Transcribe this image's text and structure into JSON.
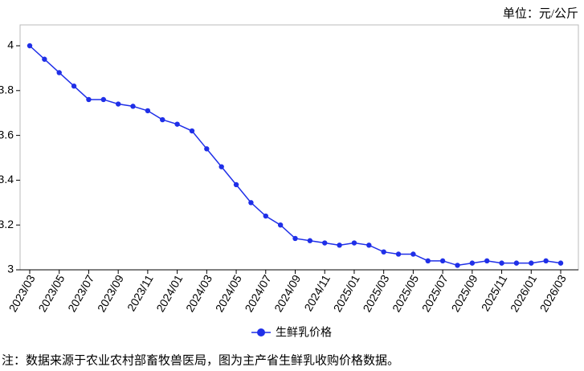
{
  "chart_data": {
    "type": "line",
    "unit_label": "单位：元/公斤",
    "note": "注：数据来源于农业农村部畜牧兽医局，图为主产省生鲜乳收购价格数据。",
    "categories": [
      "2023/03",
      null,
      "2023/05",
      null,
      "2023/07",
      null,
      "2023/09",
      null,
      "2023/11",
      null,
      "2024/01",
      null,
      "2024/03",
      null,
      "2024/05",
      null,
      "2024/07",
      null,
      "2024/09",
      null,
      "2024/11",
      null,
      "2025/01",
      null,
      "2025/03",
      null,
      "2025/05",
      null,
      "2025/07",
      null,
      "2025/09",
      null,
      "2025/11",
      null,
      "2026/01",
      null,
      "2026/03"
    ],
    "series": [
      {
        "name": "生鲜乳价格",
        "color": "#1f2fe8",
        "values": [
          4.0,
          3.94,
          3.88,
          3.82,
          3.76,
          3.76,
          3.74,
          3.73,
          3.71,
          3.67,
          3.65,
          3.62,
          3.54,
          3.46,
          3.38,
          3.3,
          3.24,
          3.2,
          3.14,
          3.13,
          3.12,
          3.11,
          3.12,
          3.11,
          3.08,
          3.07,
          3.07,
          3.04,
          3.04,
          3.02,
          3.03,
          3.04,
          3.03,
          3.03,
          3.03,
          3.04,
          3.03
        ]
      }
    ],
    "ylim": [
      3,
      4
    ],
    "yticks": [
      3,
      3.2,
      3.4,
      3.6,
      3.8,
      4
    ]
  }
}
